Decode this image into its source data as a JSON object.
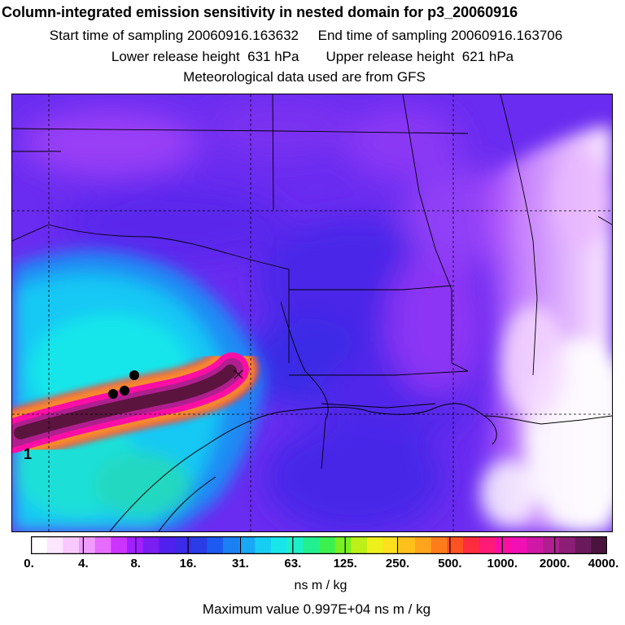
{
  "header": {
    "title": "Column-integrated emission sensitivity in nested domain for p3_20060916",
    "start_label": "Start time of sampling 20060916.163632",
    "end_label": "End time of sampling 20060916.163706",
    "lower_label": "Lower release height  631 hPa",
    "upper_label": "Upper release height  621 hPa",
    "met_label": "Meteorological data used are from GFS"
  },
  "map": {
    "marker_label": "1",
    "release_marker": "X",
    "background_colors": {
      "far_field": "#6a2cf0",
      "west_low": "#18e0f0",
      "east_high": "#f4d6ff"
    }
  },
  "colorbar": {
    "tick_labels": [
      "0.",
      "4.",
      "8.",
      "16.",
      "31.",
      "63.",
      "125.",
      "250.",
      "500.",
      "1000.",
      "2000.",
      "4000."
    ],
    "colors": [
      "#ffffff",
      "#fde6ff",
      "#f9c8ff",
      "#f09cff",
      "#e66cff",
      "#cc33ff",
      "#a020ff",
      "#7a1ef2",
      "#5020ee",
      "#3c2ae8",
      "#2a3ce6",
      "#1c5af0",
      "#1a80f4",
      "#18a8f6",
      "#18cdf4",
      "#19e6ea",
      "#1cf0c8",
      "#22f090",
      "#3cf050",
      "#78f022",
      "#bcf018",
      "#eef01a",
      "#ffe01c",
      "#ffc01c",
      "#ffa41c",
      "#ff7c1c",
      "#ff5222",
      "#ff2c40",
      "#ff1a78",
      "#ff0ea6",
      "#f010b4",
      "#d018a6",
      "#b01e90",
      "#8c1e76",
      "#6a1a5c",
      "#4a143e"
    ],
    "units": "ns m / kg",
    "max_label": "Maximum value  0.997E+04 ns m / kg"
  }
}
